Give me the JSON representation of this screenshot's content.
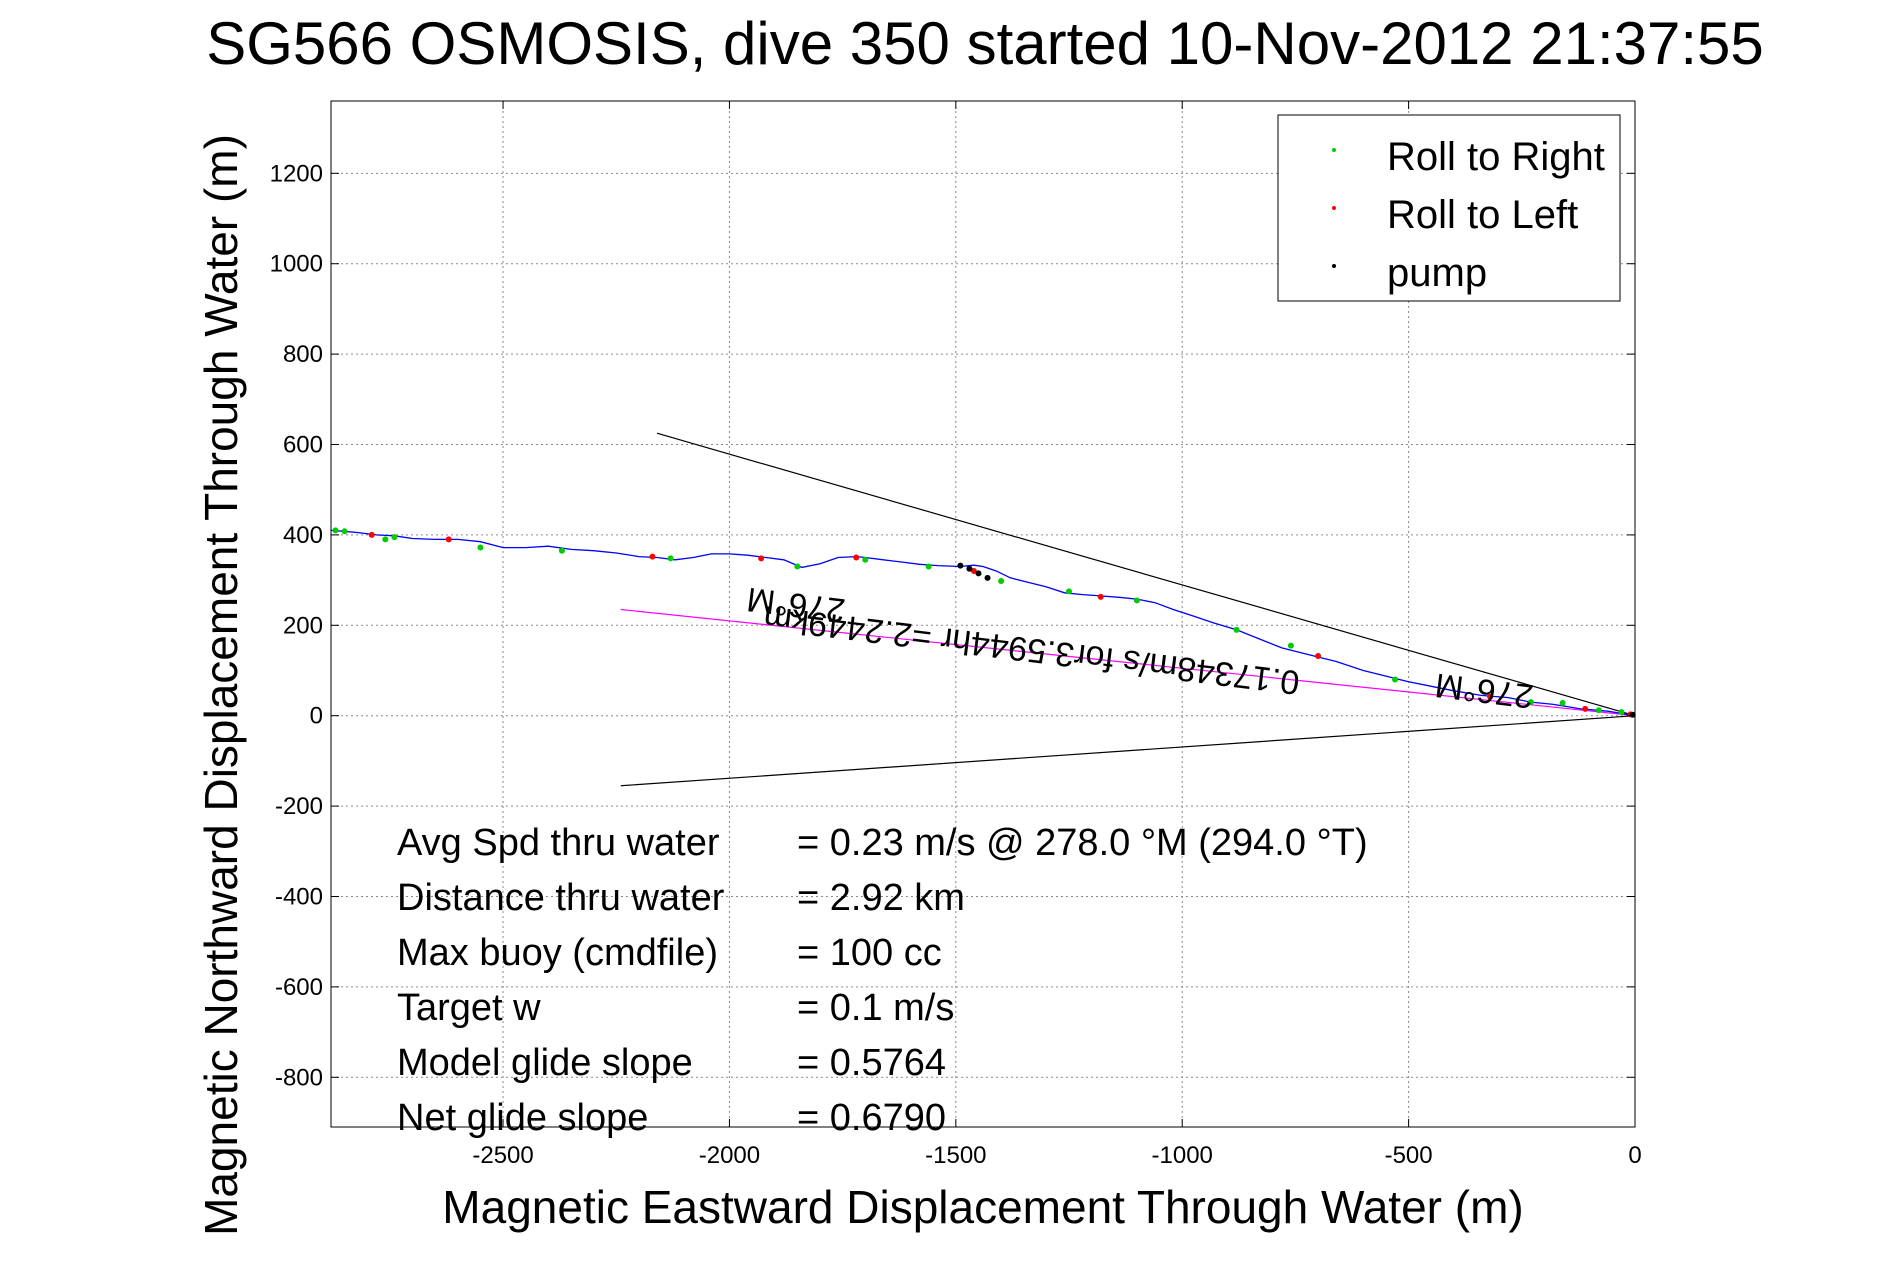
{
  "chart_data": {
    "type": "line",
    "title": "SG566 OSMOSIS, dive 350 started 10-Nov-2012 21:37:55",
    "xlabel": "Magnetic Eastward Displacement Through Water (m)",
    "ylabel": "Magnetic Northward Displacement Through Water (m)",
    "xlim": [
      -2880,
      0
    ],
    "ylim": [
      -910,
      1360
    ],
    "xticks": [
      -2500,
      -2000,
      -1500,
      -1000,
      -500,
      0
    ],
    "yticks": [
      -800,
      -600,
      -400,
      -200,
      0,
      200,
      400,
      600,
      800,
      1000,
      1200
    ],
    "grid": true,
    "legend": {
      "position": "top-right",
      "entries": [
        {
          "label": "Roll to Right",
          "color": "#00cc00"
        },
        {
          "label": "Roll to Left",
          "color": "#ff0000"
        },
        {
          "label": "pump",
          "color": "#000000"
        }
      ]
    },
    "track": {
      "color": "#0000ff",
      "x": [
        0,
        -60,
        -120,
        -180,
        -230,
        -280,
        -340,
        -400,
        -450,
        -500,
        -540,
        -600,
        -660,
        -720,
        -780,
        -830,
        -880,
        -930,
        -980,
        -1020,
        -1060,
        -1100,
        -1140,
        -1180,
        -1220,
        -1260,
        -1300,
        -1340,
        -1380,
        -1410,
        -1440,
        -1460,
        -1490,
        -1540,
        -1580,
        -1620,
        -1660,
        -1700,
        -1720,
        -1760,
        -1800,
        -1840,
        -1880,
        -1920,
        -1960,
        -2000,
        -2040,
        -2080,
        -2120,
        -2160,
        -2200,
        -2250,
        -2300,
        -2350,
        -2400,
        -2450,
        -2500,
        -2550,
        -2600,
        -2650,
        -2700,
        -2740,
        -2780,
        -2820,
        -2850,
        -2880
      ],
      "y": [
        0,
        10,
        15,
        25,
        30,
        40,
        45,
        55,
        65,
        75,
        85,
        100,
        120,
        135,
        150,
        170,
        190,
        205,
        222,
        235,
        250,
        258,
        262,
        265,
        268,
        272,
        285,
        295,
        305,
        320,
        330,
        333,
        330,
        332,
        335,
        340,
        345,
        350,
        352,
        350,
        336,
        328,
        345,
        350,
        355,
        358,
        358,
        350,
        345,
        350,
        352,
        360,
        365,
        368,
        375,
        372,
        372,
        385,
        390,
        390,
        392,
        398,
        400,
        405,
        408,
        410
      ]
    },
    "markers": {
      "roll_right": {
        "x": [
          -30,
          -80,
          -160,
          -230,
          -530,
          -760,
          -880,
          -1100,
          -1250,
          -1400,
          -1560,
          -1700,
          -1850,
          -2130,
          -2370,
          -2550,
          -2740,
          -2760,
          -2850,
          -2870
        ],
        "y": [
          8,
          12,
          28,
          30,
          80,
          155,
          190,
          255,
          275,
          298,
          330,
          345,
          330,
          348,
          365,
          372,
          395,
          390,
          408,
          410
        ]
      },
      "roll_left": {
        "x": [
          -10,
          -110,
          -320,
          -700,
          -1180,
          -1460,
          -1720,
          -1930,
          -2170,
          -2620,
          -2790
        ],
        "y": [
          3,
          15,
          42,
          132,
          263,
          320,
          350,
          348,
          352,
          390,
          400
        ]
      },
      "pump": {
        "x": [
          -5,
          -1430,
          -1450,
          -1470,
          -1490
        ],
        "y": [
          2,
          305,
          315,
          325,
          332
        ]
      }
    },
    "reference_lines": [
      {
        "color": "#000000",
        "x": [
          0,
          -2160
        ],
        "y": [
          0,
          625
        ]
      },
      {
        "color": "#000000",
        "x": [
          0,
          -2240
        ],
        "y": [
          0,
          -155
        ]
      },
      {
        "color": "#ff00ff",
        "x": [
          0,
          -2240
        ],
        "y": [
          0,
          235
        ]
      }
    ],
    "annotations": [
      {
        "text": "276°M",
        "x": -1850,
        "y": 270,
        "rotation": 187
      },
      {
        "text": "276°M",
        "x": -330,
        "y": 80,
        "rotation": 187
      },
      {
        "text": "0.17348m/s for3.5944hr =2.2449km",
        "x": -1330,
        "y": 170,
        "rotation": 187
      }
    ],
    "stats": [
      {
        "label": "Avg Spd thru water",
        "value": "=  0.23 m/s @ 278.0 °M (294.0 °T)"
      },
      {
        "label": "Distance thru water",
        "value": "=  2.92 km"
      },
      {
        "label": "Max buoy (cmdfile)",
        "value": "= 100 cc"
      },
      {
        "label": "Target w",
        "value": "= 0.1 m/s"
      },
      {
        "label": "Model glide slope",
        "value": "= 0.5764"
      },
      {
        "label": "Net glide slope",
        "value": "= 0.6790"
      }
    ]
  }
}
